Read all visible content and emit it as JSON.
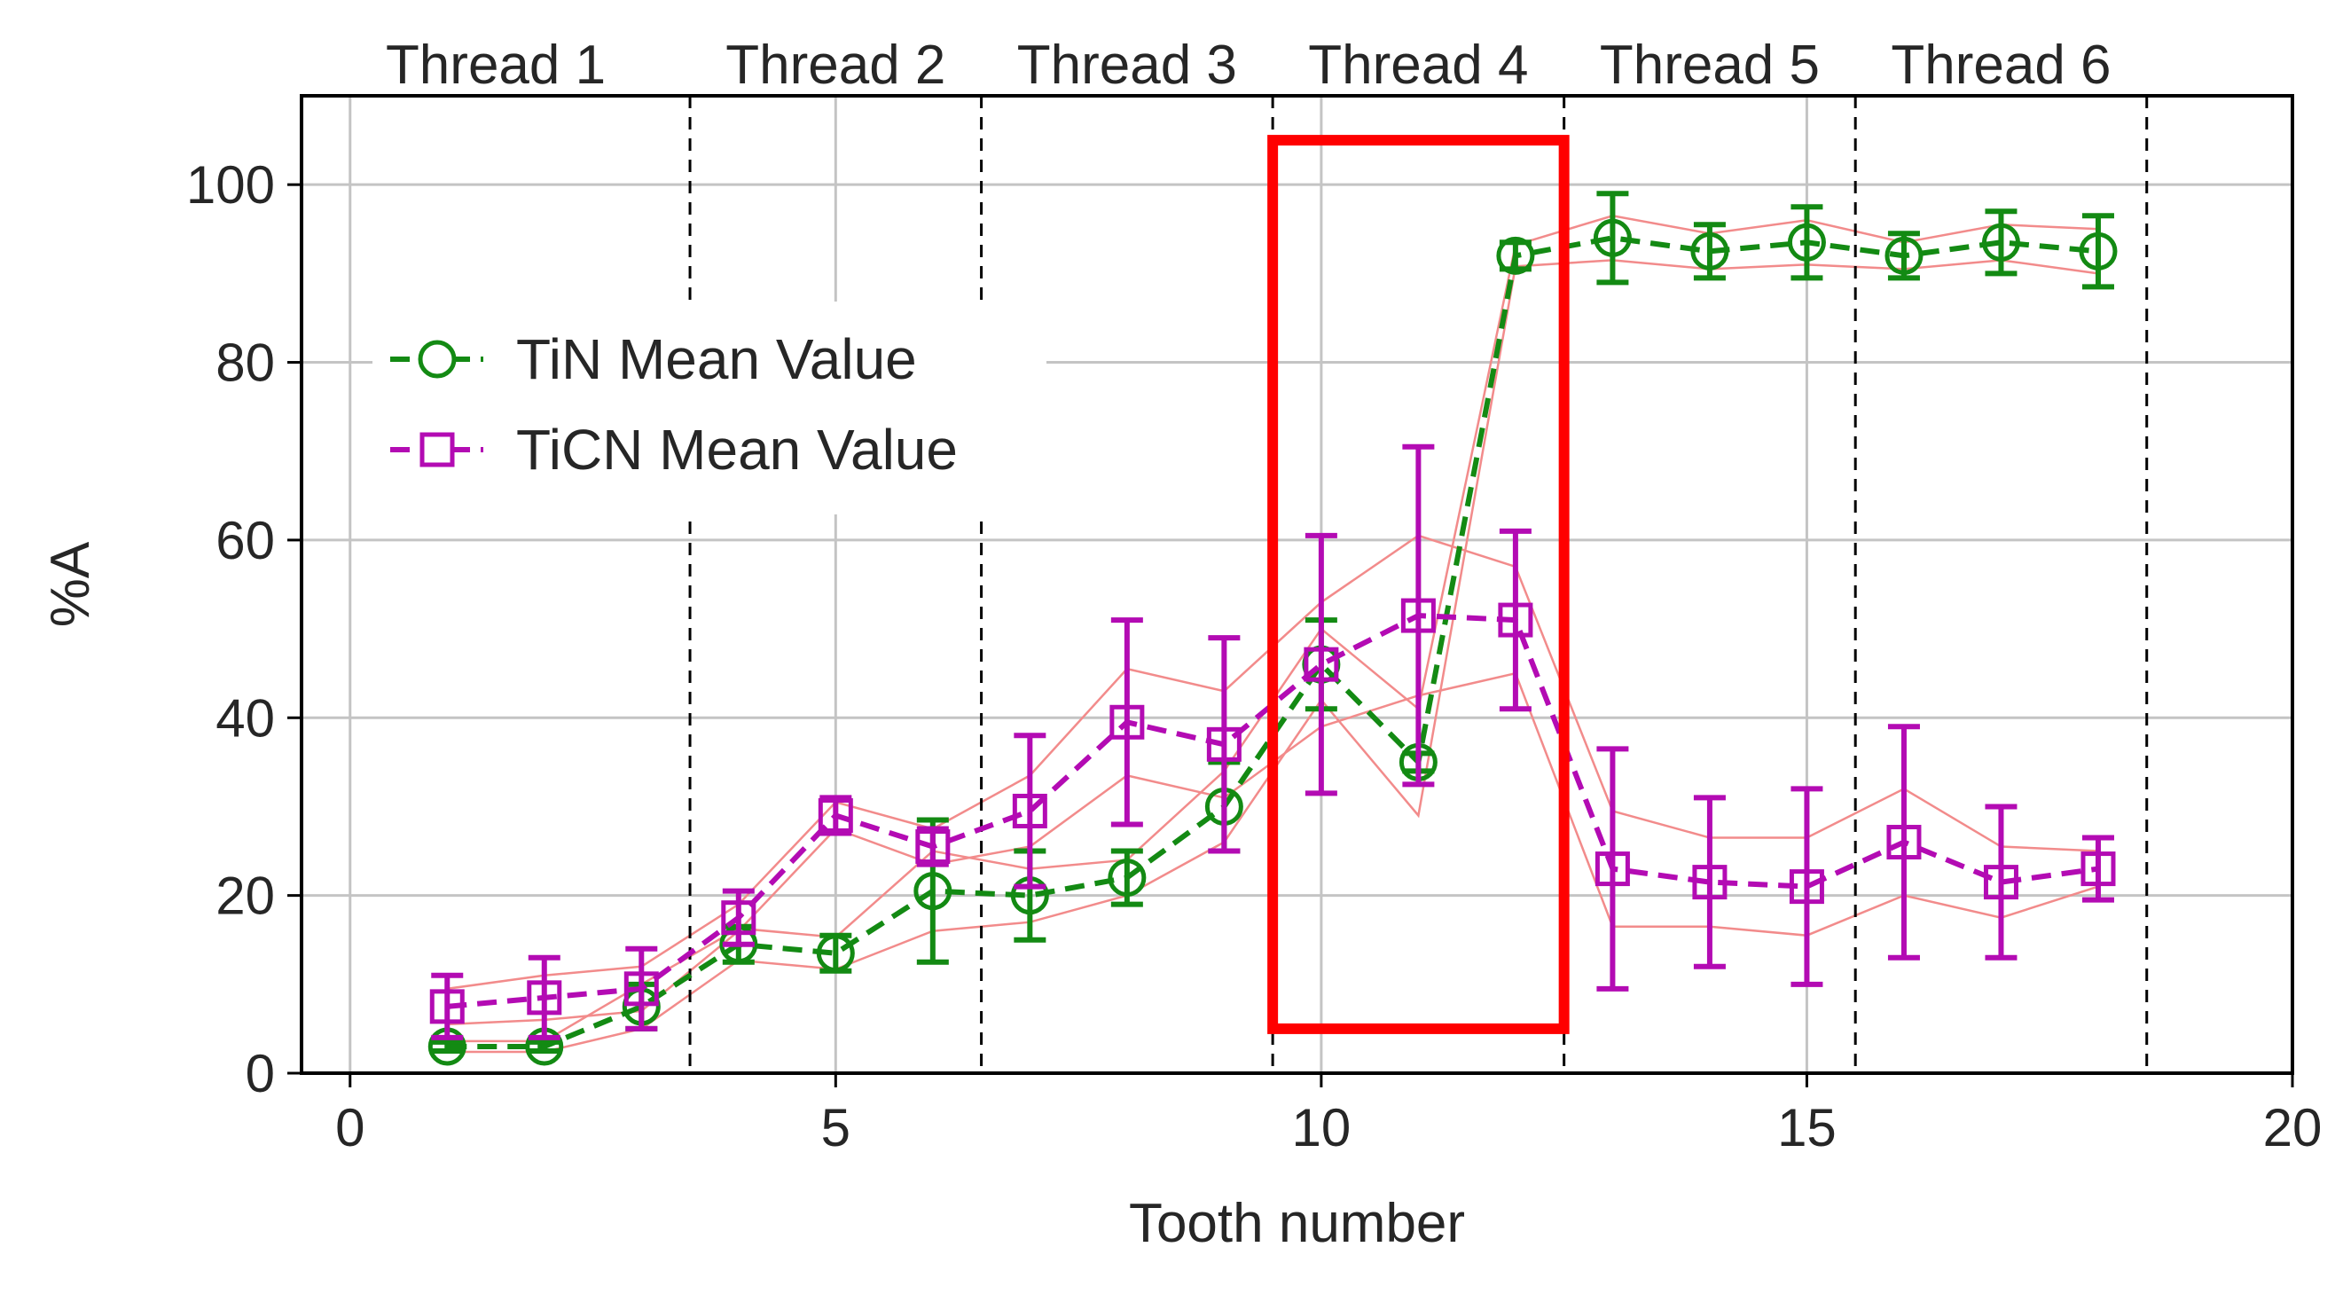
{
  "chart_data": {
    "type": "line",
    "title": "",
    "xlabel": "Tooth number",
    "ylabel": "%A",
    "xlim": [
      -0.5,
      20
    ],
    "ylim": [
      0,
      110
    ],
    "xticks": [
      0,
      5,
      10,
      15,
      20
    ],
    "yticks": [
      0,
      20,
      40,
      60,
      80,
      100
    ],
    "xtick_labels": [
      "0",
      "5",
      "10",
      "15",
      "20"
    ],
    "ytick_labels": [
      "0",
      "20",
      "40",
      "60",
      "80",
      "100"
    ],
    "grid": true,
    "legend_position": "upper-left",
    "threads": [
      {
        "label": "Thread 1",
        "center": 1.5,
        "start": 0.5,
        "end": 3.5
      },
      {
        "label": "Thread 2",
        "center": 5.0,
        "start": 3.5,
        "end": 6.5
      },
      {
        "label": "Thread 3",
        "center": 8.0,
        "start": 6.5,
        "end": 9.5
      },
      {
        "label": "Thread 4",
        "center": 11.0,
        "start": 9.5,
        "end": 12.5
      },
      {
        "label": "Thread 5",
        "center": 14.0,
        "start": 12.5,
        "end": 15.5
      },
      {
        "label": "Thread 6",
        "center": 17.0,
        "start": 15.5,
        "end": 18.5
      }
    ],
    "thread_boundaries": [
      3.5,
      6.5,
      9.5,
      12.5,
      15.5,
      18.5
    ],
    "highlight_box": {
      "x0": 9.5,
      "x1": 12.5,
      "y0": 5,
      "y1": 105,
      "color": "#ff0000"
    },
    "series": [
      {
        "name": "TiN Mean Value",
        "color": "#138a13",
        "marker": "circle",
        "x": [
          1,
          2,
          3,
          4,
          5,
          6,
          7,
          8,
          9,
          10,
          11,
          12,
          13,
          14,
          15,
          16,
          17,
          18
        ],
        "y": [
          3,
          3,
          7.5,
          14.5,
          13.5,
          20.5,
          20,
          22,
          30,
          46,
          35,
          92,
          94,
          92.5,
          93.5,
          92,
          93.5,
          92.5
        ],
        "err": [
          0.5,
          0.5,
          2.5,
          2,
          2,
          8,
          5,
          3,
          5,
          5,
          1,
          1.5,
          5,
          3,
          4,
          2.5,
          3.5,
          4
        ],
        "band": [
          0.6,
          0.6,
          2.5,
          1.8,
          1.8,
          4.5,
          3,
          2,
          4,
          4,
          6,
          1.2,
          2.5,
          2,
          2.5,
          1.5,
          2,
          2.5
        ]
      },
      {
        "name": "TiCN Mean Value",
        "color": "#b30bb3",
        "marker": "square",
        "x": [
          1,
          2,
          3,
          4,
          5,
          6,
          7,
          8,
          9,
          10,
          11,
          12,
          13,
          14,
          15,
          16,
          17,
          18
        ],
        "y": [
          7.5,
          8.5,
          9.5,
          17.5,
          29,
          25.5,
          29.5,
          39.5,
          37,
          46,
          51.5,
          51,
          23,
          21.5,
          21,
          26,
          21.5,
          23
        ],
        "err": [
          3.5,
          4.5,
          4.5,
          3,
          2,
          2,
          8.5,
          11.5,
          12,
          14.5,
          19,
          10,
          13.5,
          9.5,
          11,
          13,
          8.5,
          3.5
        ],
        "band": [
          2,
          2.5,
          2.5,
          1.5,
          1.5,
          2,
          4,
          6,
          6,
          7,
          9,
          6,
          6.5,
          5,
          5.5,
          6,
          4,
          2
        ]
      }
    ]
  }
}
